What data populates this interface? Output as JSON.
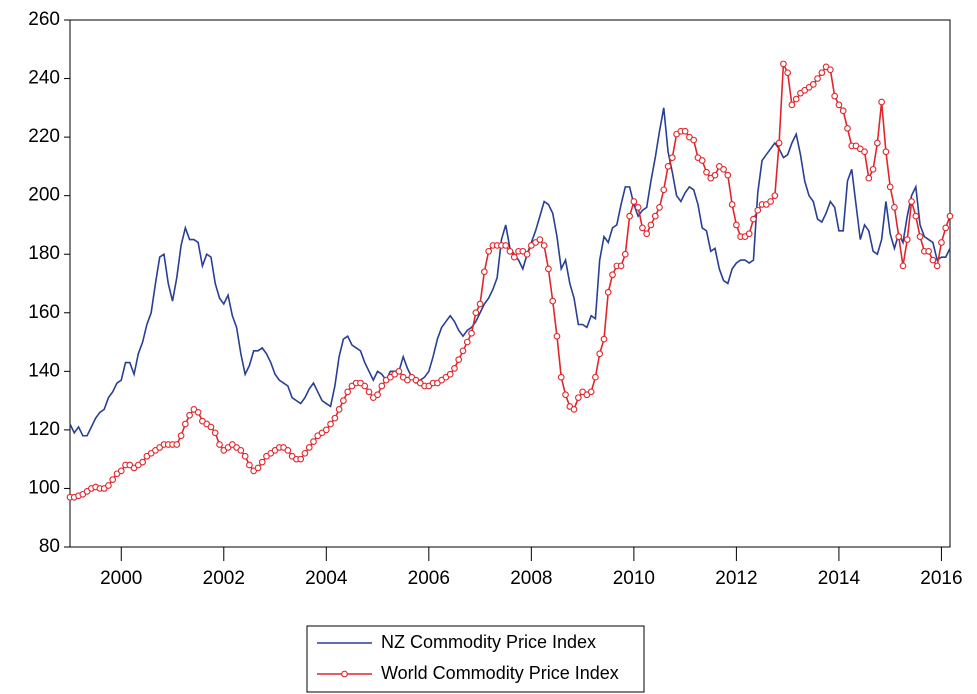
{
  "chart_data": {
    "type": "line",
    "x": [
      1999,
      1999.083,
      1999.167,
      1999.25,
      1999.333,
      1999.417,
      1999.5,
      1999.583,
      1999.667,
      1999.75,
      1999.833,
      1999.917,
      2000,
      2000.083,
      2000.167,
      2000.25,
      2000.333,
      2000.417,
      2000.5,
      2000.583,
      2000.667,
      2000.75,
      2000.833,
      2000.917,
      2001,
      2001.083,
      2001.167,
      2001.25,
      2001.333,
      2001.417,
      2001.5,
      2001.583,
      2001.667,
      2001.75,
      2001.833,
      2001.917,
      2002,
      2002.083,
      2002.167,
      2002.25,
      2002.333,
      2002.417,
      2002.5,
      2002.583,
      2002.667,
      2002.75,
      2002.833,
      2002.917,
      2003,
      2003.083,
      2003.167,
      2003.25,
      2003.333,
      2003.417,
      2003.5,
      2003.583,
      2003.667,
      2003.75,
      2003.833,
      2003.917,
      2004,
      2004.083,
      2004.167,
      2004.25,
      2004.333,
      2004.417,
      2004.5,
      2004.583,
      2004.667,
      2004.75,
      2004.833,
      2004.917,
      2005,
      2005.083,
      2005.167,
      2005.25,
      2005.333,
      2005.417,
      2005.5,
      2005.583,
      2005.667,
      2005.75,
      2005.833,
      2005.917,
      2006,
      2006.083,
      2006.167,
      2006.25,
      2006.333,
      2006.417,
      2006.5,
      2006.583,
      2006.667,
      2006.75,
      2006.833,
      2006.917,
      2007,
      2007.083,
      2007.167,
      2007.25,
      2007.333,
      2007.417,
      2007.5,
      2007.583,
      2007.667,
      2007.75,
      2007.833,
      2007.917,
      2008,
      2008.083,
      2008.167,
      2008.25,
      2008.333,
      2008.417,
      2008.5,
      2008.583,
      2008.667,
      2008.75,
      2008.833,
      2008.917,
      2009,
      2009.083,
      2009.167,
      2009.25,
      2009.333,
      2009.417,
      2009.5,
      2009.583,
      2009.667,
      2009.75,
      2009.833,
      2009.917,
      2010,
      2010.083,
      2010.167,
      2010.25,
      2010.333,
      2010.417,
      2010.5,
      2010.583,
      2010.667,
      2010.75,
      2010.833,
      2010.917,
      2011,
      2011.083,
      2011.167,
      2011.25,
      2011.333,
      2011.417,
      2011.5,
      2011.583,
      2011.667,
      2011.75,
      2011.833,
      2011.917,
      2012,
      2012.083,
      2012.167,
      2012.25,
      2012.333,
      2012.417,
      2012.5,
      2012.583,
      2012.667,
      2012.75,
      2012.833,
      2012.917,
      2013,
      2013.083,
      2013.167,
      2013.25,
      2013.333,
      2013.417,
      2013.5,
      2013.583,
      2013.667,
      2013.75,
      2013.833,
      2013.917,
      2014,
      2014.083,
      2014.167,
      2014.25,
      2014.333,
      2014.417,
      2014.5,
      2014.583,
      2014.667,
      2014.75,
      2014.833,
      2014.917,
      2015,
      2015.083,
      2015.167,
      2015.25,
      2015.333,
      2015.417,
      2015.5,
      2015.583,
      2015.667,
      2015.75,
      2015.833,
      2015.917,
      2016,
      2016.083,
      2016.167
    ],
    "series": [
      {
        "name": "NZ Commodity Price Index",
        "color": "#283f94",
        "marker": "none",
        "values": [
          122,
          119,
          121,
          118,
          118,
          121,
          124,
          126,
          127,
          131,
          133,
          136,
          137,
          143,
          143,
          139,
          146,
          150,
          156,
          160,
          170,
          179,
          180,
          170,
          164,
          172,
          183,
          189,
          185,
          185,
          184,
          176,
          180,
          179,
          170,
          165,
          163,
          166,
          159,
          155,
          146,
          139,
          142,
          147,
          147,
          148,
          146,
          143,
          139,
          137,
          136,
          135,
          131,
          130,
          129,
          131,
          134,
          136,
          133,
          130,
          129,
          128,
          135,
          145,
          151,
          152,
          149,
          148,
          147,
          143,
          140,
          137,
          140,
          139,
          137,
          140,
          140,
          140,
          145,
          141,
          138,
          136,
          137,
          138,
          140,
          145,
          151,
          155,
          157,
          159,
          157,
          154,
          152,
          154,
          155,
          157,
          160,
          163,
          165,
          168,
          172,
          185,
          190,
          182,
          180,
          178,
          175,
          180,
          184,
          188,
          193,
          198,
          197,
          194,
          186,
          175,
          178,
          170,
          165,
          156,
          156,
          155,
          159,
          158,
          178,
          186,
          184,
          189,
          190,
          197,
          203,
          203,
          197,
          193,
          195,
          196,
          205,
          213,
          222,
          230,
          215,
          208,
          200,
          198,
          201,
          203,
          202,
          197,
          189,
          188,
          181,
          182,
          175,
          171,
          170,
          175,
          177,
          178,
          178,
          177,
          178,
          201,
          212,
          214,
          216,
          218,
          216,
          213,
          214,
          218,
          221,
          214,
          205,
          200,
          198,
          192,
          191,
          194,
          198,
          196,
          188,
          188,
          205,
          209,
          197,
          185,
          190,
          188,
          181,
          180,
          185,
          198,
          187,
          182,
          187,
          184,
          193,
          200,
          203,
          190,
          186,
          185,
          184,
          178,
          179,
          179,
          182
        ]
      },
      {
        "name": "World Commodity Price Index",
        "color": "#e0262b",
        "marker": "circle",
        "values": [
          97,
          97,
          97.5,
          98,
          99,
          100,
          100.5,
          100,
          100,
          101,
          103,
          105,
          106,
          108,
          108,
          107,
          108,
          109,
          111,
          112,
          113,
          114,
          115,
          115,
          115,
          115,
          118,
          122,
          125,
          127,
          126,
          123,
          122,
          121,
          119,
          115,
          113,
          114,
          115,
          114,
          113,
          111,
          108,
          106,
          107,
          109,
          111,
          112,
          113,
          114,
          114,
          113,
          111,
          110,
          110,
          112,
          114,
          116,
          118,
          119,
          120,
          122,
          124,
          127,
          130,
          133,
          135,
          136,
          136,
          135,
          133,
          131,
          132,
          135,
          137,
          138,
          139,
          140,
          138,
          137,
          138,
          137,
          136,
          135,
          135,
          136,
          136,
          137,
          138,
          139,
          141,
          144,
          147,
          150,
          153,
          160,
          163,
          174,
          181,
          183,
          183,
          183,
          183,
          181,
          179,
          181,
          181,
          180,
          183,
          184,
          185,
          183,
          175,
          164,
          152,
          138,
          132,
          128,
          127,
          131,
          133,
          132,
          133,
          138,
          146,
          151,
          167,
          173,
          176,
          176,
          180,
          193,
          198,
          196,
          189,
          187,
          190,
          193,
          196,
          202,
          210,
          213,
          221,
          222,
          222,
          220,
          219,
          213,
          212,
          208,
          206,
          207,
          210,
          209,
          207,
          197,
          190,
          186,
          186,
          187,
          192,
          195,
          197,
          197,
          198,
          200,
          218,
          245,
          242,
          231,
          233,
          235,
          236,
          237,
          238,
          240,
          242,
          244,
          243,
          234,
          231,
          229,
          223,
          217,
          217,
          216,
          215,
          206,
          209,
          218,
          232,
          215,
          203,
          196,
          186,
          176,
          185,
          198,
          193,
          186,
          181,
          181,
          178,
          176,
          184,
          189,
          193
        ]
      }
    ],
    "xlim": [
      1999,
      2016.167
    ],
    "xticks": [
      2000,
      2002,
      2004,
      2006,
      2008,
      2010,
      2012,
      2014,
      2016
    ],
    "ylim": [
      80,
      260
    ],
    "yticks": [
      80,
      100,
      120,
      140,
      160,
      180,
      200,
      220,
      240,
      260
    ],
    "grid": false,
    "legend": "bottom"
  }
}
